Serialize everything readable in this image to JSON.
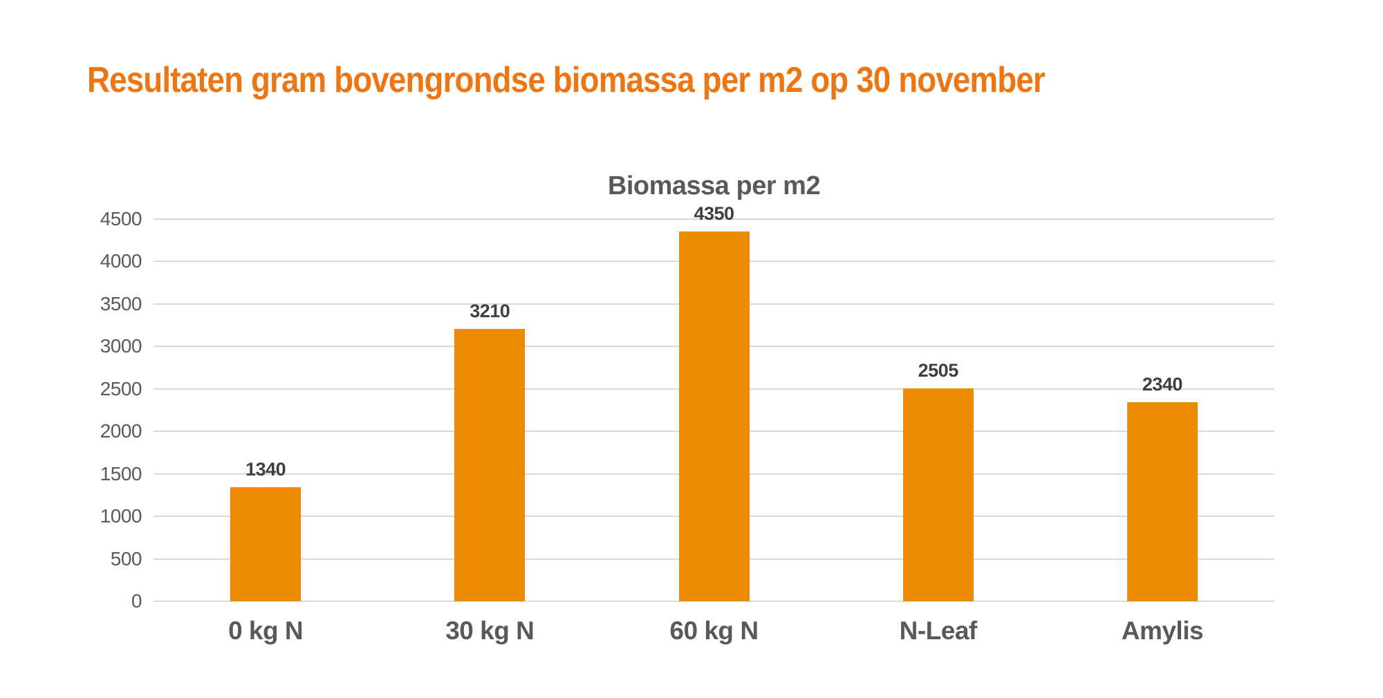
{
  "header": {
    "title": "Resultaten gram bovengrondse biomassa per m2 op 30 november"
  },
  "chart_data": {
    "type": "bar",
    "title": "Biomassa per m2",
    "categories": [
      "0 kg N",
      "30 kg N",
      "60 kg N",
      "N-Leaf",
      "Amylis"
    ],
    "values": [
      1340,
      3210,
      4350,
      2505,
      2340
    ],
    "data_labels": [
      "1340",
      "3210",
      "4350",
      "2505",
      "2340"
    ],
    "xlabel": "",
    "ylabel": "",
    "ylim": [
      0,
      4500
    ],
    "ytick_step": 500,
    "grid": true,
    "legend": "none",
    "colors": {
      "background": "#FFFFFF",
      "page_title": "#ED7612",
      "chart_title": "#595959",
      "bar": "#EE8A00",
      "gridline": "#D9D9D9",
      "axis_text": "#595959",
      "data_label": "#3F3F3F",
      "category_label": "#595959"
    }
  }
}
